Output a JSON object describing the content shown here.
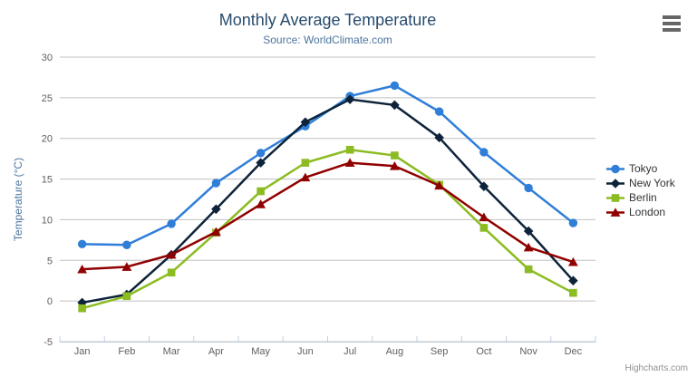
{
  "header": {
    "title": "Monthly Average Temperature",
    "subtitle": "Source: WorldClimate.com"
  },
  "credits": "Highcharts.com",
  "context_menu_icon": "hamburger-menu-icon",
  "chart_data": {
    "type": "line",
    "title": "Monthly Average Temperature",
    "subtitle": "Source: WorldClimate.com",
    "categories": [
      "Jan",
      "Feb",
      "Mar",
      "Apr",
      "May",
      "Jun",
      "Jul",
      "Aug",
      "Sep",
      "Oct",
      "Nov",
      "Dec"
    ],
    "xlabel": "",
    "ylabel": "Temperature (°C)",
    "ylim": [
      -5,
      30
    ],
    "ytick_interval": 5,
    "grid": "horizontal",
    "legend_position": "right",
    "colors": {
      "grid_line": "#c0c0c0",
      "axis_line": "#c0d0e0",
      "tick_label": "#606060",
      "axis_title": "#4d759e",
      "title": "#274b6d",
      "subtitle": "#4d759e"
    },
    "series": [
      {
        "name": "Tokyo",
        "color": "#2f7ed8",
        "marker": "circle",
        "values": [
          7.0,
          6.9,
          9.5,
          14.5,
          18.2,
          21.5,
          25.2,
          26.5,
          23.3,
          18.3,
          13.9,
          9.6
        ]
      },
      {
        "name": "New York",
        "color": "#0d233a",
        "marker": "diamond",
        "values": [
          -0.2,
          0.8,
          5.7,
          11.3,
          17.0,
          22.0,
          24.8,
          24.1,
          20.1,
          14.1,
          8.6,
          2.5
        ]
      },
      {
        "name": "Berlin",
        "color": "#8bbc21",
        "marker": "square",
        "values": [
          -0.9,
          0.6,
          3.5,
          8.4,
          13.5,
          17.0,
          18.6,
          17.9,
          14.3,
          9.0,
          3.9,
          1.0
        ]
      },
      {
        "name": "London",
        "color": "#910000",
        "marker": "triangle",
        "values": [
          3.9,
          4.2,
          5.7,
          8.5,
          11.9,
          15.2,
          17.0,
          16.6,
          14.2,
          10.3,
          6.6,
          4.8
        ]
      }
    ]
  }
}
